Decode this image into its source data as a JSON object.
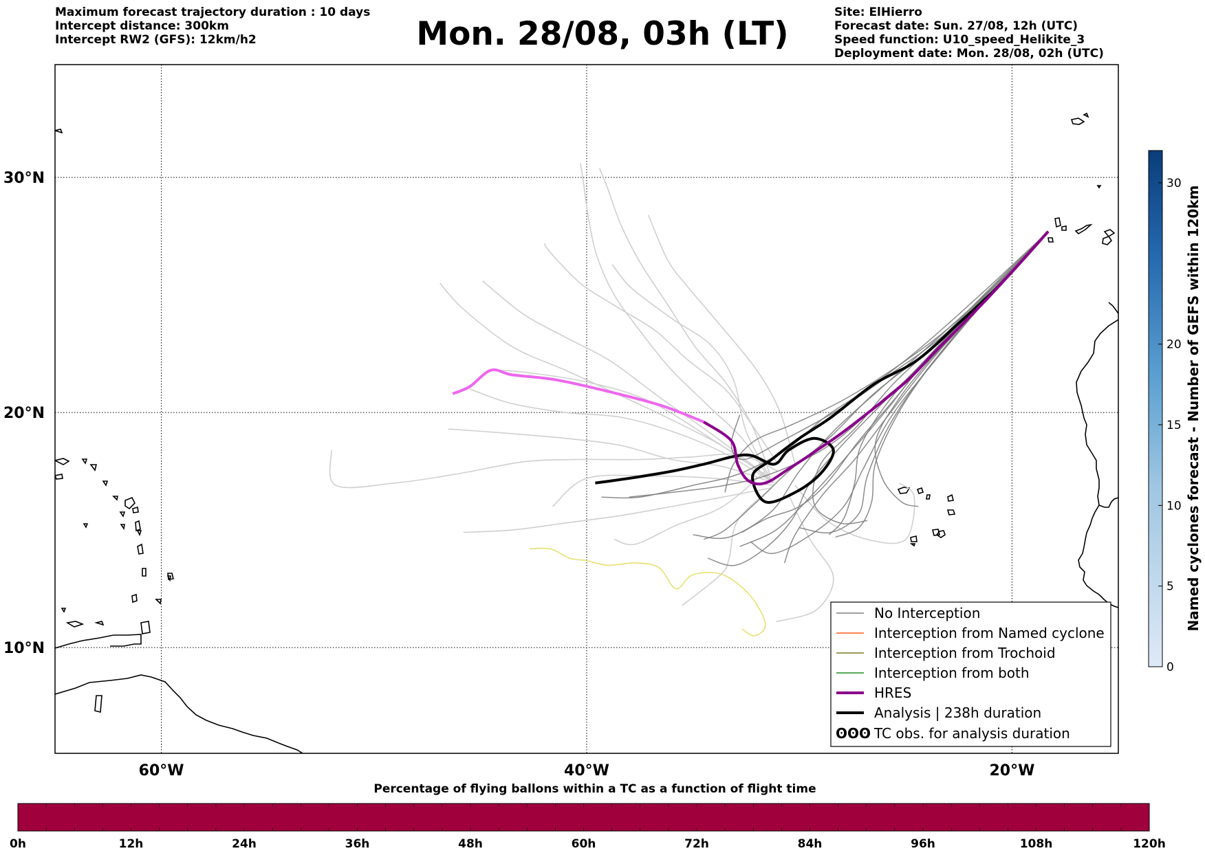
{
  "header": {
    "left_lines": [
      "Maximum forecast trajectory duration : 10 days",
      "Intercept distance: 300km",
      "Intercept RW2 (GFS):  12km/h2"
    ],
    "title": "Mon. 28/08, 03h (LT)",
    "right_lines": [
      "Site: ElHierro",
      "Forecast date: Sun. 27/08, 12h (UTC)",
      "Speed function: U10_speed_Helikite_3",
      "Deployment date: Mon. 28/08, 02h (UTC)"
    ]
  },
  "map": {
    "lon_range": [
      -65,
      -15
    ],
    "lat_range": [
      5.5,
      34.8
    ],
    "lon_ticks": [
      {
        "value": -60,
        "label": "60°W"
      },
      {
        "value": -40,
        "label": "40°W"
      },
      {
        "value": -20,
        "label": "20°W"
      }
    ],
    "lat_ticks": [
      {
        "value": 10,
        "label": "10°N"
      },
      {
        "value": 20,
        "label": "20°N"
      },
      {
        "value": 30,
        "label": "30°N"
      }
    ],
    "grid": true,
    "launch_site": {
      "lon": -18.3,
      "lat": 27.7
    }
  },
  "chart_data": {
    "type": "line",
    "legend_placement": "lower-right",
    "series": [
      {
        "name": "No Interception",
        "color": "#808080"
      },
      {
        "name": "Interception from Named cyclone",
        "color": "#ff5a1e"
      },
      {
        "name": "Interception from Trochoid",
        "color": "#7a7a1e"
      },
      {
        "name": "Interception from both",
        "color": "#1e8c1e"
      },
      {
        "name": "HRES",
        "color": "#8b008b"
      },
      {
        "name": "Analysis | 238h duration",
        "color": "#000000"
      },
      {
        "name": "TC obs. for analysis duration",
        "color": "#000000",
        "symbol": "ʘʘʘ"
      }
    ],
    "hres_track": [
      [
        -18.3,
        27.7
      ],
      [
        -21,
        25
      ],
      [
        -23.6,
        22.6
      ],
      [
        -25,
        21.3
      ],
      [
        -27.6,
        19.4
      ],
      [
        -29,
        18.5
      ],
      [
        -30.5,
        17.6
      ],
      [
        -31.6,
        17.0
      ],
      [
        -32.4,
        17.1
      ],
      [
        -32.9,
        17.8
      ],
      [
        -33.2,
        18.8
      ],
      [
        -34.5,
        19.6
      ],
      [
        -36.5,
        20.3
      ],
      [
        -39,
        20.9
      ],
      [
        -41.5,
        21.4
      ],
      [
        -43.5,
        21.6
      ],
      [
        -44.5,
        21.8
      ],
      [
        -45.5,
        21.1
      ],
      [
        -46.3,
        20.8
      ]
    ],
    "hres_magenta_from_index": 11,
    "analysis_track": [
      [
        -18.3,
        27.7
      ],
      [
        -20.5,
        25.5
      ],
      [
        -22.5,
        23.8
      ],
      [
        -24.5,
        22.2
      ],
      [
        -26.5,
        21.2
      ],
      [
        -28.5,
        19.8
      ],
      [
        -30,
        18.9
      ],
      [
        -31.3,
        18.0
      ],
      [
        -32.2,
        17.3
      ],
      [
        -31.6,
        16.2
      ],
      [
        -30.2,
        16.6
      ],
      [
        -29,
        17.4
      ],
      [
        -28.4,
        18.4
      ],
      [
        -29.3,
        18.9
      ],
      [
        -30.5,
        18.4
      ],
      [
        -31.2,
        17.8
      ],
      [
        -32.5,
        18.2
      ],
      [
        -34.5,
        17.8
      ],
      [
        -36,
        17.5
      ],
      [
        -38,
        17.2
      ],
      [
        -39.6,
        17.0
      ]
    ],
    "no_interception_tracks": [
      [
        [
          -18.3,
          27.7
        ],
        [
          -21,
          25.1
        ],
        [
          -24,
          22.6
        ],
        [
          -26.5,
          20.8
        ],
        [
          -28.5,
          19.0
        ],
        [
          -30.5,
          17.5
        ],
        [
          -32,
          16.2
        ],
        [
          -33.5,
          15.0
        ],
        [
          -34.5,
          14.6
        ]
      ],
      [
        [
          -18.3,
          27.7
        ],
        [
          -21.2,
          25
        ],
        [
          -24,
          22.3
        ],
        [
          -26.3,
          20.2
        ],
        [
          -28,
          18.6
        ],
        [
          -29.5,
          17.0
        ],
        [
          -30.3,
          15.5
        ],
        [
          -31.5,
          14.3
        ],
        [
          -33,
          13.5
        ],
        [
          -34.3,
          13.8
        ]
      ],
      [
        [
          -18.3,
          27.7
        ],
        [
          -20.8,
          25.4
        ],
        [
          -23.7,
          23.0
        ],
        [
          -26.2,
          21.0
        ],
        [
          -28.4,
          19.2
        ],
        [
          -30,
          17.5
        ],
        [
          -31.3,
          15.8
        ],
        [
          -33.3,
          14.7
        ],
        [
          -35,
          14.8
        ]
      ],
      [
        [
          -18.3,
          27.7
        ],
        [
          -21,
          25.2
        ],
        [
          -23.6,
          22.7
        ],
        [
          -25.7,
          20.6
        ],
        [
          -27.1,
          18.6
        ],
        [
          -27.4,
          17.0
        ],
        [
          -27.9,
          15.5
        ],
        [
          -28.6,
          14.8
        ]
      ],
      [
        [
          -18.3,
          27.7
        ],
        [
          -21.5,
          25
        ],
        [
          -24.5,
          22.6
        ],
        [
          -26.8,
          21.0
        ],
        [
          -28.8,
          19.8
        ],
        [
          -30.5,
          18.5
        ],
        [
          -32.8,
          17.4
        ],
        [
          -35,
          16.9
        ],
        [
          -37.5,
          16.4
        ],
        [
          -39.3,
          16.4
        ]
      ],
      [
        [
          -18.3,
          27.7
        ],
        [
          -21,
          25
        ],
        [
          -23.4,
          22.5
        ],
        [
          -25.2,
          20.2
        ],
        [
          -26.4,
          17.9
        ],
        [
          -26.6,
          16.2
        ],
        [
          -27.2,
          15.1
        ],
        [
          -28.3,
          14.7
        ]
      ],
      [
        [
          -18.3,
          27.7
        ],
        [
          -20.9,
          25.4
        ],
        [
          -23.5,
          23.0
        ],
        [
          -25.6,
          21.2
        ],
        [
          -27.3,
          19.4
        ],
        [
          -29,
          17.8
        ],
        [
          -29.3,
          16.1
        ],
        [
          -28.1,
          15.3
        ],
        [
          -26.8,
          15.4
        ]
      ],
      [
        [
          -18.3,
          27.7
        ],
        [
          -20.7,
          25.5
        ],
        [
          -23.2,
          23.3
        ],
        [
          -25.6,
          21.7
        ],
        [
          -28,
          20.2
        ],
        [
          -30.8,
          18.8
        ],
        [
          -32.6,
          18.0
        ],
        [
          -33.2,
          18.6
        ],
        [
          -32.8,
          19.9
        ]
      ],
      [
        [
          -18.3,
          27.7
        ],
        [
          -21.1,
          24.9
        ],
        [
          -23.8,
          22.0
        ],
        [
          -25.7,
          19.8
        ],
        [
          -27,
          17.6
        ],
        [
          -28,
          15.9
        ],
        [
          -29.8,
          14.6
        ],
        [
          -31.3,
          14.0
        ],
        [
          -32.3,
          14.5
        ]
      ],
      [
        [
          -18.3,
          27.7
        ],
        [
          -21,
          25.1
        ],
        [
          -23.5,
          22.8
        ],
        [
          -25.4,
          20.7
        ],
        [
          -27.2,
          18.8
        ],
        [
          -28.7,
          17.0
        ],
        [
          -30,
          16.0
        ],
        [
          -31.5,
          15.5
        ],
        [
          -32.7,
          14.9
        ]
      ],
      [
        [
          -18.3,
          27.7
        ],
        [
          -21.3,
          24.8
        ],
        [
          -23.9,
          22.4
        ],
        [
          -25.9,
          20.1
        ],
        [
          -27.8,
          18.1
        ],
        [
          -29.6,
          16.3
        ],
        [
          -31.1,
          15.0
        ],
        [
          -32.8,
          14.3
        ]
      ],
      [
        [
          -18.3,
          27.7
        ],
        [
          -20.6,
          25.6
        ],
        [
          -23.1,
          23.5
        ],
        [
          -25.5,
          21.9
        ],
        [
          -28,
          20.5
        ],
        [
          -30.3,
          19.5
        ],
        [
          -32.1,
          18.8
        ],
        [
          -33.1,
          17.8
        ],
        [
          -33.5,
          16.6
        ]
      ],
      [
        [
          -18.3,
          27.7
        ],
        [
          -21.4,
          24.6
        ],
        [
          -24.1,
          21.7
        ],
        [
          -25.8,
          19.4
        ],
        [
          -26.8,
          17.3
        ],
        [
          -27.2,
          15.7
        ],
        [
          -28.5,
          14.9
        ],
        [
          -30,
          15.1
        ]
      ],
      [
        [
          -18.3,
          27.7
        ],
        [
          -21,
          25
        ],
        [
          -23.7,
          22.4
        ],
        [
          -26,
          20.6
        ],
        [
          -28.6,
          18.6
        ],
        [
          -31.3,
          17.4
        ],
        [
          -33.5,
          16.9
        ],
        [
          -36,
          16.6
        ],
        [
          -38,
          16.4
        ]
      ],
      [
        [
          -18.3,
          27.7
        ],
        [
          -21.1,
          25
        ],
        [
          -23.9,
          22.1
        ],
        [
          -25.8,
          19.9
        ],
        [
          -27.4,
          18.0
        ],
        [
          -28.9,
          16.5
        ],
        [
          -30.2,
          14.8
        ],
        [
          -30.7,
          13.6
        ]
      ],
      [
        [
          -18.3,
          27.7
        ],
        [
          -21.2,
          24.9
        ],
        [
          -23.6,
          22.5
        ],
        [
          -25.3,
          20.6
        ],
        [
          -26.4,
          18.8
        ],
        [
          -26.1,
          17.2
        ],
        [
          -25.2,
          16.2
        ],
        [
          -24.4,
          16.0
        ]
      ]
    ],
    "alt_tracks": [
      [
        [
          -31,
          17.5
        ],
        [
          -32.8,
          18.2
        ],
        [
          -35.2,
          18.1
        ],
        [
          -37.5,
          18.0
        ],
        [
          -40.5,
          18.0
        ],
        [
          -43,
          17.9
        ],
        [
          -46,
          17.4
        ],
        [
          -49,
          17.0
        ],
        [
          -51.8,
          16.9
        ],
        [
          -52,
          18.4
        ]
      ],
      [
        [
          -31,
          17.8
        ],
        [
          -32.4,
          19.7
        ],
        [
          -33.5,
          21.0
        ],
        [
          -35.2,
          22.2
        ],
        [
          -36.8,
          23.5
        ],
        [
          -38.6,
          24.5
        ],
        [
          -40.3,
          25.5
        ],
        [
          -41.7,
          26.8
        ],
        [
          -42,
          27.2
        ]
      ],
      [
        [
          -31.4,
          17.4
        ],
        [
          -32.2,
          19.4
        ],
        [
          -33.4,
          21.2
        ],
        [
          -34.9,
          22.8
        ],
        [
          -36.2,
          24.6
        ],
        [
          -37.5,
          26.4
        ],
        [
          -38.4,
          28.0
        ],
        [
          -39,
          29.5
        ],
        [
          -39.4,
          30.4
        ]
      ],
      [
        [
          -31.3,
          17.0
        ],
        [
          -32.6,
          18.8
        ],
        [
          -34.3,
          20.3
        ],
        [
          -36.1,
          21.9
        ],
        [
          -37.6,
          23.6
        ],
        [
          -38.7,
          25.0
        ],
        [
          -39.5,
          26.6
        ],
        [
          -39.9,
          28.2
        ],
        [
          -40.2,
          30.1
        ],
        [
          -40.3,
          30.6
        ]
      ],
      [
        [
          -31.2,
          17.0
        ],
        [
          -33.3,
          18.4
        ],
        [
          -35.8,
          19.6
        ],
        [
          -38.6,
          20.8
        ],
        [
          -41,
          21.8
        ],
        [
          -43.5,
          22.8
        ],
        [
          -45.8,
          24.4
        ],
        [
          -46.9,
          25.5
        ]
      ],
      [
        [
          -31.2,
          17.0
        ],
        [
          -33.6,
          18.3
        ],
        [
          -36,
          19.2
        ],
        [
          -38.4,
          19.8
        ],
        [
          -41,
          20.0
        ],
        [
          -43.6,
          20.4
        ],
        [
          -45.5,
          21.0
        ]
      ],
      [
        [
          -31.2,
          17.0
        ],
        [
          -33.6,
          17.7
        ],
        [
          -36,
          18.0
        ],
        [
          -38.4,
          18.6
        ],
        [
          -41,
          18.9
        ],
        [
          -43.5,
          19.1
        ],
        [
          -46.5,
          19.3
        ]
      ],
      [
        [
          -31.3,
          16.8
        ],
        [
          -33.6,
          16.4
        ],
        [
          -36,
          16.0
        ],
        [
          -38.5,
          15.6
        ],
        [
          -41,
          15.3
        ],
        [
          -43.5,
          15.0
        ],
        [
          -45.8,
          14.9
        ]
      ],
      [
        [
          -31.3,
          16.8
        ],
        [
          -32.9,
          15.4
        ],
        [
          -33.3,
          13.8
        ],
        [
          -33.7,
          13.1
        ],
        [
          -35.5,
          11.8
        ]
      ],
      [
        [
          -30.2,
          16.9
        ],
        [
          -28.7,
          15.4
        ],
        [
          -26.8,
          14.6
        ],
        [
          -25,
          14.6
        ],
        [
          -24.6,
          16.4
        ],
        [
          -25.3,
          17.0
        ]
      ],
      [
        [
          -31.4,
          17.2
        ],
        [
          -34,
          19.0
        ],
        [
          -36.5,
          20.6
        ],
        [
          -38.9,
          22.2
        ],
        [
          -41,
          23.2
        ],
        [
          -43,
          24.2
        ],
        [
          -44.9,
          25.6
        ]
      ],
      [
        [
          -31.3,
          17.1
        ],
        [
          -32.5,
          19.2
        ],
        [
          -33.1,
          21.4
        ],
        [
          -34.2,
          22.9
        ],
        [
          -36,
          24.0
        ],
        [
          -37.9,
          25.3
        ],
        [
          -38.8,
          26.3
        ]
      ],
      [
        [
          -30.2,
          17.8
        ],
        [
          -30.9,
          20.0
        ],
        [
          -32.0,
          21.8
        ],
        [
          -33.8,
          23.8
        ],
        [
          -35.3,
          25.4
        ],
        [
          -36.2,
          26.5
        ],
        [
          -37.1,
          28.4
        ]
      ],
      [
        [
          -30.5,
          16.5
        ],
        [
          -29.5,
          14.6
        ],
        [
          -28.4,
          13.0
        ],
        [
          -29.2,
          11.6
        ],
        [
          -31.1,
          11.1
        ]
      ],
      [
        [
          -31.6,
          17.5
        ],
        [
          -33.6,
          16.0
        ],
        [
          -35.8,
          15.2
        ],
        [
          -37.7,
          14.4
        ],
        [
          -38.7,
          14.6
        ]
      ],
      [
        [
          -31.2,
          16.9
        ],
        [
          -34,
          17.2
        ],
        [
          -37,
          17.3
        ],
        [
          -40,
          17.2
        ],
        [
          -41.6,
          16.0
        ]
      ],
      [
        [
          -31.4,
          17.2
        ],
        [
          -34,
          18.8
        ],
        [
          -37.1,
          20.5
        ],
        [
          -40,
          21.3
        ],
        [
          -42.8,
          21.7
        ],
        [
          -44.2,
          21.8
        ]
      ]
    ],
    "yellow_track": [
      [
        -42.7,
        14.2
      ],
      [
        -41.7,
        14.2
      ],
      [
        -40.8,
        13.8
      ],
      [
        -40,
        13.7
      ],
      [
        -39,
        13.5
      ],
      [
        -37.7,
        13.6
      ],
      [
        -36.6,
        13.4
      ],
      [
        -35.8,
        12.5
      ],
      [
        -35,
        13.1
      ],
      [
        -33.6,
        13.1
      ],
      [
        -32.3,
        12.2
      ],
      [
        -31.6,
        11.0
      ],
      [
        -32.1,
        10.5
      ],
      [
        -32.7,
        10.8
      ]
    ]
  },
  "cyclone_colorbar": {
    "label": "Named cyclones forecast - Number of GEFS within 120km",
    "ticks": [
      "0",
      "5",
      "10",
      "15",
      "20",
      "30"
    ],
    "tick_values": [
      0,
      5,
      10,
      15,
      20,
      30
    ],
    "max_value": 32
  },
  "time_bar": {
    "title": "Percentage of flying ballons within a TC as a function of flight time",
    "ticks": [
      "0h",
      "12h",
      "24h",
      "36h",
      "48h",
      "60h",
      "72h",
      "84h",
      "96h",
      "108h",
      "120h"
    ],
    "fill_color": "#a0003c"
  }
}
